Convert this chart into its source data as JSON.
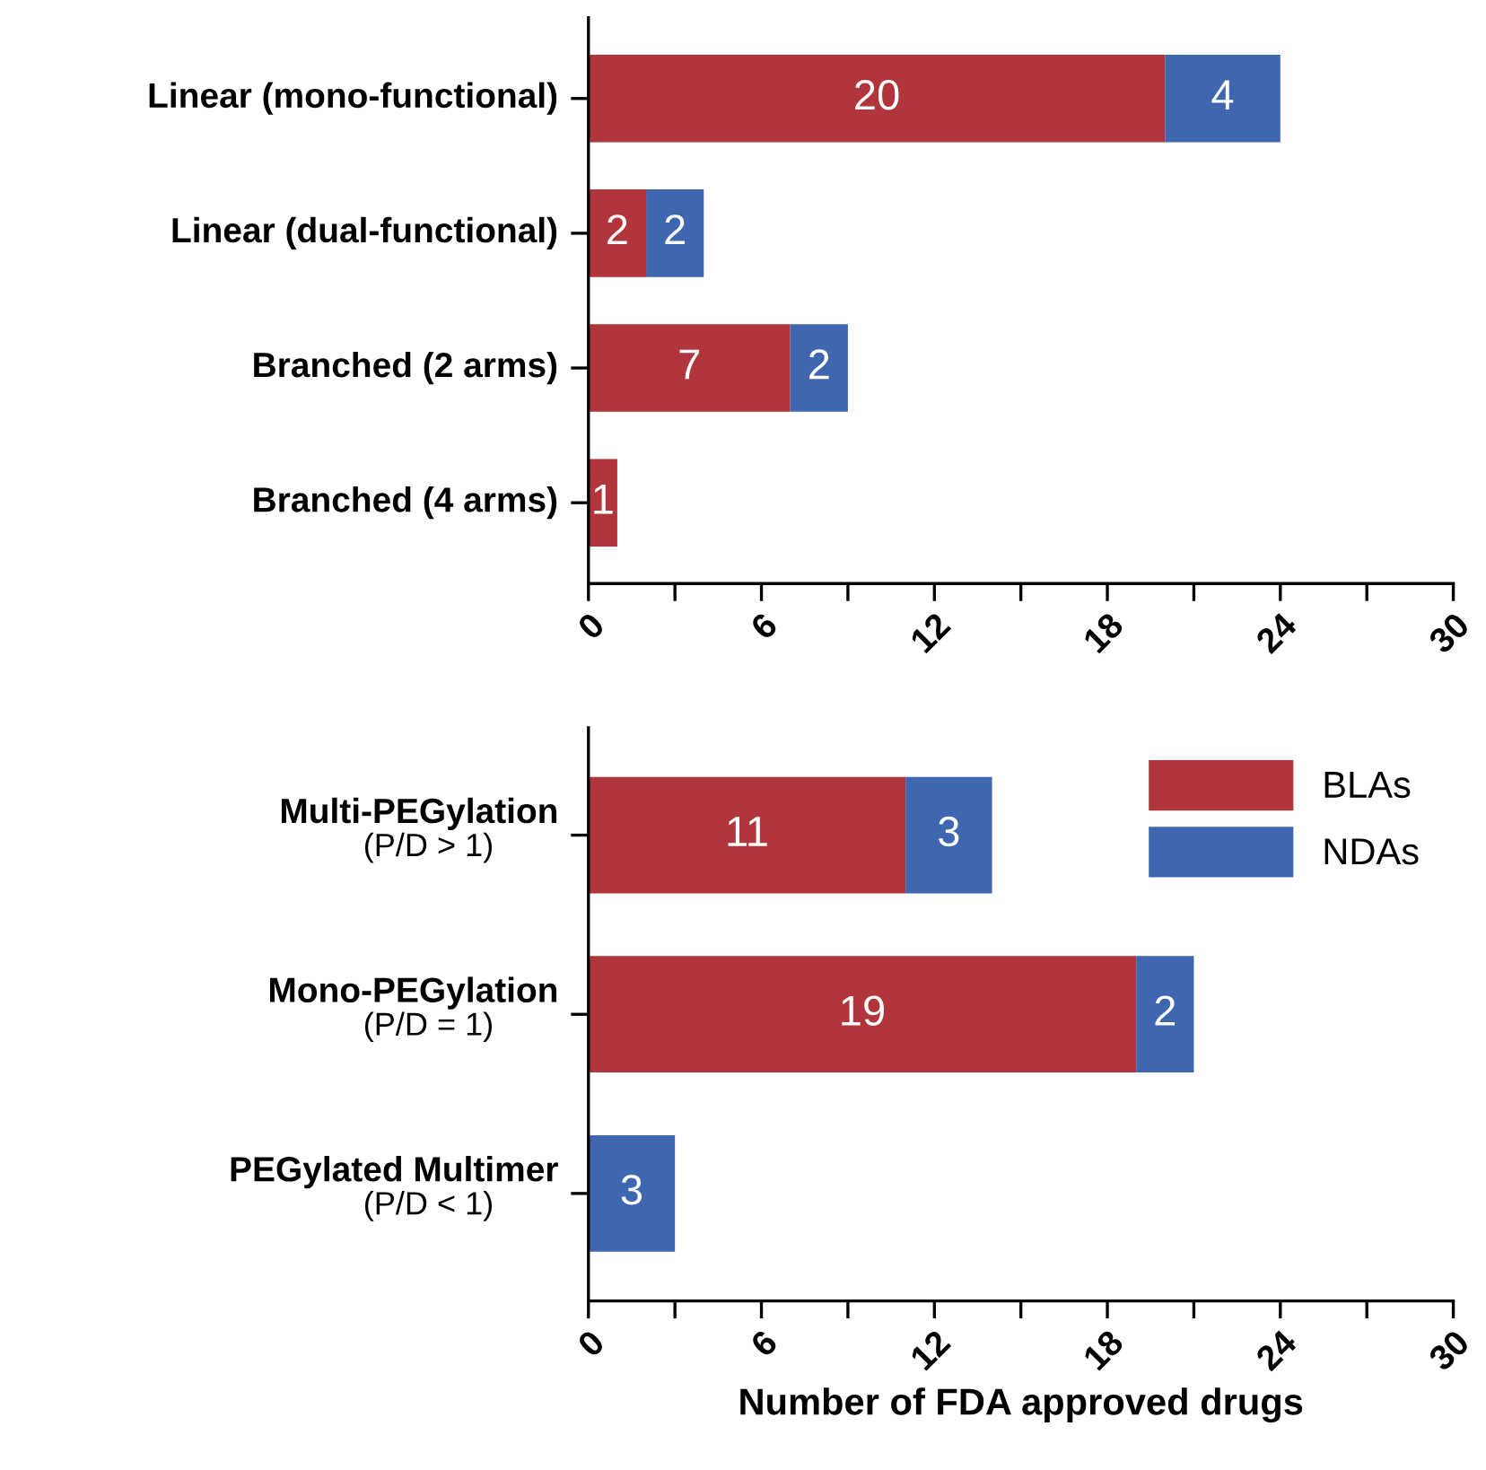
{
  "chart_data": [
    {
      "type": "bar",
      "orientation": "horizontal",
      "stacked": true,
      "categories": [
        "Linear (mono-functional)",
        "Linear (dual-functional)",
        "Branched (2 arms)",
        "Branched (4 arms)"
      ],
      "series": [
        {
          "color": "#b0363b",
          "values": [
            20,
            2,
            7,
            1
          ]
        },
        {
          "color": "#3e67b0",
          "values": [
            4,
            2,
            2,
            null
          ]
        }
      ],
      "xlim": [
        0,
        30
      ],
      "xticks": [
        0,
        {
          "value": 3,
          "label": null
        },
        6,
        {
          "value": 9,
          "label": null
        },
        12,
        {
          "value": 15,
          "label": null
        },
        18,
        {
          "value": 21,
          "label": null
        },
        24,
        {
          "value": 27,
          "label": null
        },
        30
      ],
      "data_labels": true,
      "grid": false,
      "legend": false
    },
    {
      "type": "bar",
      "orientation": "horizontal",
      "stacked": true,
      "categories": [
        "Multi-PEGylation\n(P/D > 1)",
        "Mono-PEGylation\n(P/D = 1)",
        "PEGylated Multimer\n(P/D < 1)"
      ],
      "series": [
        {
          "name": "BLAs",
          "color": "#b0363b",
          "values": [
            11,
            19,
            null
          ]
        },
        {
          "name": "NDAs",
          "color": "#3e67b0",
          "values": [
            3,
            2,
            3
          ]
        }
      ],
      "xlim": [
        0,
        30
      ],
      "xticks": [
        0,
        {
          "value": 3,
          "label": null
        },
        6,
        {
          "value": 9,
          "label": null
        },
        12,
        {
          "value": 15,
          "label": null
        },
        18,
        {
          "value": 21,
          "label": null
        },
        24,
        {
          "value": 27,
          "label": null
        },
        30
      ],
      "xlabel": "Number of FDA approved drugs",
      "data_labels": true,
      "grid": false,
      "legend": "top right"
    }
  ]
}
